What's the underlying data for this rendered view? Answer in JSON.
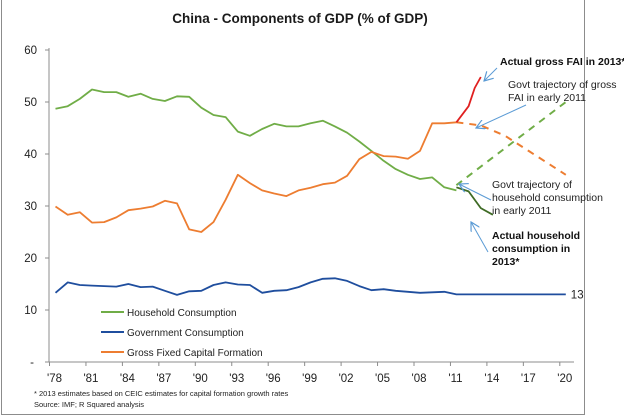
{
  "chart_data": {
    "type": "line",
    "title": "China - Components of GDP (% of GDP)",
    "xlabel": "",
    "ylabel": "",
    "ylim": [
      0,
      60
    ],
    "xlim": [
      1978,
      2020
    ],
    "grid": false,
    "legend_position": "bottom-left",
    "yticks": [
      {
        "value": 60,
        "label": "60"
      },
      {
        "value": 50,
        "label": "50"
      },
      {
        "value": 40,
        "label": "40"
      },
      {
        "value": 30,
        "label": "30"
      },
      {
        "value": 20,
        "label": "20"
      },
      {
        "value": 10,
        "label": "10"
      },
      {
        "value": 0,
        "label": "-"
      }
    ],
    "xticks": [
      {
        "value": 1978,
        "label": "'78"
      },
      {
        "value": 1981,
        "label": "'81"
      },
      {
        "value": 1984,
        "label": "'84"
      },
      {
        "value": 1987,
        "label": "'87"
      },
      {
        "value": 1990,
        "label": "'90"
      },
      {
        "value": 1993,
        "label": "'93"
      },
      {
        "value": 1996,
        "label": "'96"
      },
      {
        "value": 1999,
        "label": "'99"
      },
      {
        "value": 2002,
        "label": "'02"
      },
      {
        "value": 2005,
        "label": "'05"
      },
      {
        "value": 2008,
        "label": "'08"
      },
      {
        "value": 2011,
        "label": "'11"
      },
      {
        "value": 2014,
        "label": "'14"
      },
      {
        "value": 2017,
        "label": "'17"
      },
      {
        "value": 2020,
        "label": "'20"
      }
    ],
    "series": [
      {
        "name": "Household Consumption",
        "color": "#70ad47",
        "style": "solid",
        "in_legend": true,
        "x": [
          1978,
          1979,
          1980,
          1981,
          1982,
          1983,
          1984,
          1985,
          1986,
          1987,
          1988,
          1989,
          1990,
          1991,
          1992,
          1993,
          1994,
          1995,
          1996,
          1997,
          1998,
          1999,
          2000,
          2001,
          2002,
          2003,
          2004,
          2005,
          2006,
          2007,
          2008,
          2009,
          2010,
          2011
        ],
        "y": [
          48.7,
          49.2,
          50.6,
          52.4,
          51.9,
          51.9,
          51.0,
          51.6,
          50.6,
          50.2,
          51.1,
          51.0,
          48.9,
          47.5,
          47.1,
          44.3,
          43.5,
          44.8,
          45.8,
          45.3,
          45.3,
          45.9,
          46.4,
          45.3,
          44.1,
          42.4,
          40.6,
          38.7,
          37.1,
          36.0,
          35.2,
          35.5,
          33.6,
          33.0
        ]
      },
      {
        "name": "Government Consumption",
        "color": "#1f4e9e",
        "style": "solid",
        "in_legend": true,
        "x": [
          1978,
          1979,
          1980,
          1981,
          1982,
          1983,
          1984,
          1985,
          1986,
          1987,
          1988,
          1989,
          1990,
          1991,
          1992,
          1993,
          1994,
          1995,
          1996,
          1997,
          1998,
          1999,
          2000,
          2001,
          2002,
          2003,
          2004,
          2005,
          2006,
          2007,
          2008,
          2009,
          2010,
          2011,
          2012,
          2013,
          2014,
          2015,
          2016,
          2017,
          2018,
          2019,
          2020
        ],
        "y": [
          13.3,
          15.3,
          14.8,
          14.7,
          14.6,
          14.5,
          15.0,
          14.4,
          14.5,
          13.7,
          12.9,
          13.6,
          13.7,
          14.8,
          15.3,
          14.9,
          14.8,
          13.3,
          13.7,
          13.8,
          14.4,
          15.3,
          16.0,
          16.1,
          15.6,
          14.6,
          13.8,
          14.0,
          13.7,
          13.5,
          13.3,
          13.4,
          13.5,
          13.0,
          13.0,
          13.0,
          13.0,
          13.0,
          13.0,
          13.0,
          13.0,
          13.0,
          13.0
        ],
        "end_label": "13"
      },
      {
        "name": "Gross Fixed Capital Formation",
        "color": "#ed7d31",
        "style": "solid",
        "in_legend": true,
        "x": [
          1978,
          1979,
          1980,
          1981,
          1982,
          1983,
          1984,
          1985,
          1986,
          1987,
          1988,
          1989,
          1990,
          1991,
          1992,
          1993,
          1994,
          1995,
          1996,
          1997,
          1998,
          1999,
          2000,
          2001,
          2002,
          2003,
          2004,
          2005,
          2006,
          2007,
          2008,
          2009,
          2010,
          2011
        ],
        "y": [
          29.9,
          28.3,
          28.8,
          26.8,
          26.9,
          27.8,
          29.2,
          29.5,
          29.9,
          31.0,
          30.5,
          25.5,
          25.0,
          26.9,
          31.2,
          36.0,
          34.4,
          33.0,
          32.4,
          31.9,
          33.0,
          33.5,
          34.2,
          34.5,
          35.8,
          39.0,
          40.4,
          39.6,
          39.5,
          39.1,
          40.6,
          45.9,
          45.9,
          46.1
        ]
      },
      {
        "name": "Govt trajectory of gross FAI (early 2011)",
        "color": "#ed7d31",
        "style": "dashed",
        "in_legend": false,
        "x": [
          2011,
          2013,
          2015,
          2017,
          2020
        ],
        "y": [
          46.1,
          45.5,
          43.5,
          40.5,
          36.0
        ]
      },
      {
        "name": "Govt trajectory of household consumption (early 2011)",
        "color": "#70ad47",
        "style": "dashed",
        "in_legend": false,
        "x": [
          2011,
          2020
        ],
        "y": [
          34.0,
          50.0
        ]
      },
      {
        "name": "Actual gross FAI 2010-2013",
        "color": "#e02020",
        "style": "solid",
        "in_legend": false,
        "x": [
          2011,
          2012,
          2012.5,
          2013
        ],
        "y": [
          46.1,
          49.2,
          52.7,
          54.8
        ]
      },
      {
        "name": "Actual household consumption 2011-2013",
        "color": "#3f6b25",
        "style": "solid",
        "in_legend": false,
        "x": [
          2011,
          2012,
          2013,
          2014
        ],
        "y": [
          33.6,
          32.8,
          29.6,
          28.3
        ]
      }
    ],
    "annotations": [
      {
        "id": "actual-fai",
        "lines": [
          "Actual gross FAI in 2013*"
        ],
        "bold": true
      },
      {
        "id": "traj-fai",
        "lines": [
          "Govt trajectory of gross",
          "FAI in early 2011"
        ],
        "bold": false
      },
      {
        "id": "traj-hh",
        "lines": [
          "Govt trajectory of",
          "household consumption",
          "in early 2011"
        ],
        "bold": false
      },
      {
        "id": "actual-hh",
        "lines": [
          "Actual household",
          "consumption in",
          "2013*"
        ],
        "bold": true
      }
    ],
    "footnotes": [
      "* 2013 estimates based on CEIC estimates for capital formation growth rates",
      "Source: IMF; R Squared analysis"
    ]
  }
}
